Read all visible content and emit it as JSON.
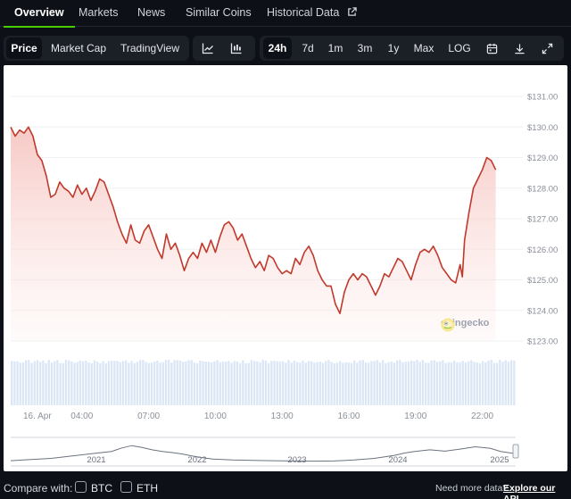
{
  "tabs": [
    {
      "label": "Overview",
      "active": true
    },
    {
      "label": "Markets"
    },
    {
      "label": "News"
    },
    {
      "label": "Similar Coins"
    },
    {
      "label": "Historical Data",
      "icon": "external-link-icon"
    }
  ],
  "toolbar": {
    "metric_buttons": [
      {
        "label": "Price",
        "active": true
      },
      {
        "label": "Market Cap"
      },
      {
        "label": "TradingView"
      }
    ],
    "chart_type_icons": [
      "line-chart-icon",
      "candlestick-chart-icon"
    ],
    "range_buttons": [
      {
        "label": "24h",
        "active": true
      },
      {
        "label": "7d"
      },
      {
        "label": "1m"
      },
      {
        "label": "3m"
      },
      {
        "label": "1y"
      },
      {
        "label": "Max"
      },
      {
        "label": "LOG"
      }
    ],
    "tool_icons": [
      "calendar-icon",
      "download-icon",
      "fullscreen-icon"
    ]
  },
  "colors": {
    "line": "#c0392b",
    "area_top": "#f6c6c2",
    "volume": "#dbe6f7",
    "accent": "#4bcc00",
    "navigator": "#6b7280"
  },
  "chart_data": {
    "type": "line",
    "y_axis": {
      "min": 123,
      "max": 131,
      "ticks": [
        123,
        124,
        125,
        126,
        127,
        128,
        129,
        130,
        131
      ],
      "tick_labels": [
        "$123.00",
        "$124.00",
        "$125.00",
        "$126.00",
        "$127.00",
        "$128.00",
        "$129.00",
        "$130.00",
        "$131.00"
      ]
    },
    "x_axis": {
      "start_hour": 0.8,
      "end_hour": 23.5,
      "tick_hours": [
        0.8,
        4,
        7,
        10,
        13,
        16,
        19,
        22
      ],
      "tick_labels": [
        "16. Apr",
        "04:00",
        "07:00",
        "10:00",
        "13:00",
        "16:00",
        "19:00",
        "22:00"
      ]
    },
    "series": [
      {
        "points": [
          [
            0.8,
            130.0
          ],
          [
            1.0,
            129.7
          ],
          [
            1.2,
            129.9
          ],
          [
            1.4,
            129.8
          ],
          [
            1.6,
            130.0
          ],
          [
            1.8,
            129.7
          ],
          [
            2.0,
            129.1
          ],
          [
            2.2,
            128.9
          ],
          [
            2.4,
            128.4
          ],
          [
            2.6,
            127.7
          ],
          [
            2.8,
            127.8
          ],
          [
            3.0,
            128.2
          ],
          [
            3.2,
            128.0
          ],
          [
            3.4,
            127.9
          ],
          [
            3.6,
            127.7
          ],
          [
            3.8,
            128.1
          ],
          [
            4.0,
            127.8
          ],
          [
            4.2,
            128.0
          ],
          [
            4.4,
            127.6
          ],
          [
            4.6,
            127.9
          ],
          [
            4.8,
            128.3
          ],
          [
            5.0,
            128.2
          ],
          [
            5.2,
            127.8
          ],
          [
            5.4,
            127.4
          ],
          [
            5.6,
            126.9
          ],
          [
            5.8,
            126.5
          ],
          [
            6.0,
            126.2
          ],
          [
            6.2,
            126.8
          ],
          [
            6.4,
            126.3
          ],
          [
            6.6,
            126.2
          ],
          [
            6.8,
            126.6
          ],
          [
            7.0,
            126.8
          ],
          [
            7.2,
            126.4
          ],
          [
            7.4,
            126.0
          ],
          [
            7.6,
            125.7
          ],
          [
            7.8,
            126.5
          ],
          [
            8.0,
            126.0
          ],
          [
            8.2,
            126.2
          ],
          [
            8.4,
            125.8
          ],
          [
            8.6,
            125.3
          ],
          [
            8.8,
            125.7
          ],
          [
            9.0,
            125.9
          ],
          [
            9.2,
            125.7
          ],
          [
            9.4,
            126.2
          ],
          [
            9.6,
            125.9
          ],
          [
            9.8,
            126.3
          ],
          [
            10.0,
            125.9
          ],
          [
            10.2,
            126.4
          ],
          [
            10.4,
            126.8
          ],
          [
            10.6,
            126.9
          ],
          [
            10.8,
            126.7
          ],
          [
            11.0,
            126.3
          ],
          [
            11.2,
            126.5
          ],
          [
            11.4,
            126.1
          ],
          [
            11.6,
            125.7
          ],
          [
            11.8,
            125.4
          ],
          [
            12.0,
            125.6
          ],
          [
            12.2,
            125.3
          ],
          [
            12.4,
            125.8
          ],
          [
            12.6,
            125.7
          ],
          [
            12.8,
            125.4
          ],
          [
            13.0,
            125.2
          ],
          [
            13.2,
            125.3
          ],
          [
            13.4,
            125.2
          ],
          [
            13.6,
            125.7
          ],
          [
            13.8,
            125.5
          ],
          [
            14.0,
            125.9
          ],
          [
            14.2,
            126.1
          ],
          [
            14.4,
            125.8
          ],
          [
            14.6,
            125.3
          ],
          [
            14.8,
            125.0
          ],
          [
            15.0,
            124.8
          ],
          [
            15.2,
            124.8
          ],
          [
            15.4,
            124.2
          ],
          [
            15.6,
            123.9
          ],
          [
            15.8,
            124.6
          ],
          [
            16.0,
            125.0
          ],
          [
            16.2,
            125.2
          ],
          [
            16.4,
            125.0
          ],
          [
            16.6,
            125.2
          ],
          [
            16.8,
            125.1
          ],
          [
            17.0,
            124.8
          ],
          [
            17.2,
            124.5
          ],
          [
            17.4,
            124.8
          ],
          [
            17.6,
            125.2
          ],
          [
            17.8,
            125.1
          ],
          [
            18.0,
            125.4
          ],
          [
            18.2,
            125.7
          ],
          [
            18.4,
            125.6
          ],
          [
            18.6,
            125.3
          ],
          [
            18.8,
            125.0
          ],
          [
            19.0,
            125.5
          ],
          [
            19.2,
            125.9
          ],
          [
            19.4,
            126.0
          ],
          [
            19.6,
            125.9
          ],
          [
            19.8,
            126.1
          ],
          [
            20.0,
            125.8
          ],
          [
            20.2,
            125.4
          ],
          [
            20.4,
            125.2
          ],
          [
            20.6,
            125.0
          ],
          [
            20.8,
            124.9
          ],
          [
            21.0,
            125.5
          ],
          [
            21.1,
            125.1
          ],
          [
            21.2,
            126.3
          ],
          [
            21.4,
            127.2
          ],
          [
            21.6,
            128.0
          ],
          [
            21.8,
            128.3
          ],
          [
            22.0,
            128.6
          ],
          [
            22.2,
            129.0
          ],
          [
            22.4,
            128.9
          ],
          [
            22.6,
            128.6
          ]
        ]
      }
    ],
    "navigator": {
      "year_labels": [
        "2021",
        "2022",
        "2023",
        "2024",
        "2025"
      ]
    }
  },
  "watermark": {
    "text": "coingecko"
  },
  "footer": {
    "compare_label": "Compare with:",
    "options": [
      {
        "label": "BTC"
      },
      {
        "label": "ETH"
      }
    ],
    "more_text": "Need more data?",
    "api_link": "Explore our API"
  }
}
